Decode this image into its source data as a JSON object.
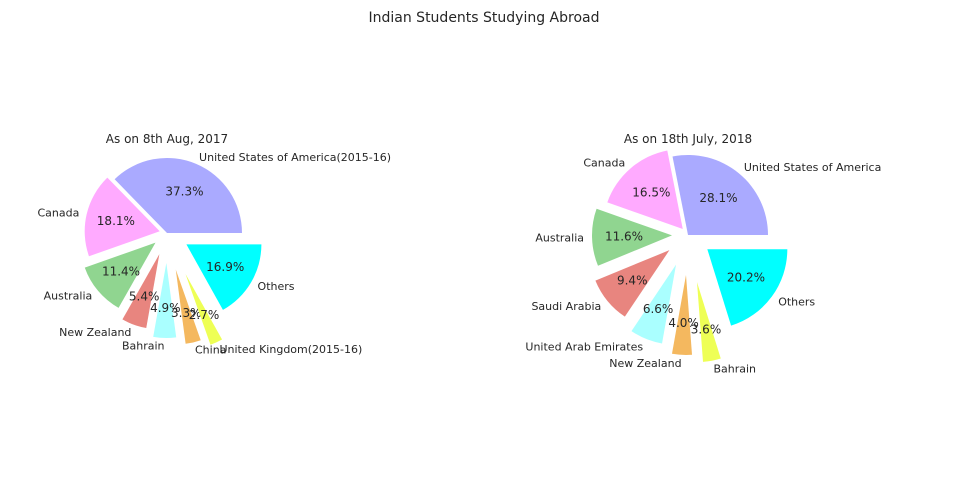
{
  "figure": {
    "title": "Indian Students Studying Abroad"
  },
  "chart_data": [
    {
      "type": "pie",
      "title": "As on 8th Aug, 2017",
      "labels": [
        "United States of America(2015-16)",
        "Canada",
        "Australia",
        "New Zealand",
        "Bahrain",
        "China",
        "United Kingdom(2015-16)",
        "Others"
      ],
      "values": [
        37.3,
        18.1,
        11.4,
        5.4,
        4.9,
        3.3,
        2.7,
        16.9
      ],
      "value_labels": [
        "37.3%",
        "18.1%",
        "11.4%",
        "5.4%",
        "4.9%",
        "3.3%",
        "2.7%",
        "16.9%"
      ],
      "colors": [
        "#aaaaff",
        "#ffaaff",
        "#90d590",
        "#e8857f",
        "#aaffff",
        "#f4b85f",
        "#eeff55",
        "#00ffff"
      ],
      "explode": [
        0.0,
        0.1,
        0.2,
        0.3,
        0.4,
        0.5,
        0.6,
        0.3
      ]
    },
    {
      "type": "pie",
      "title": "As on 18th July, 2018",
      "labels": [
        "United States of America",
        "Canada",
        "Australia",
        "Saudi Arabia",
        "United Arab Emirates",
        "New Zealand",
        "Bahrain",
        "Others"
      ],
      "values": [
        28.1,
        16.5,
        11.6,
        9.4,
        6.6,
        4.0,
        3.6,
        20.2
      ],
      "value_labels": [
        "28.1%",
        "16.5%",
        "11.6%",
        "9.4%",
        "6.6%",
        "4.0%",
        "3.6%",
        "20.2%"
      ],
      "colors": [
        "#aaaaff",
        "#ffaaff",
        "#90d590",
        "#e8857f",
        "#aaffff",
        "#f4b85f",
        "#eeff55",
        "#00ffff"
      ],
      "explode": [
        0.0,
        0.1,
        0.2,
        0.3,
        0.4,
        0.5,
        0.6,
        0.3
      ]
    }
  ]
}
